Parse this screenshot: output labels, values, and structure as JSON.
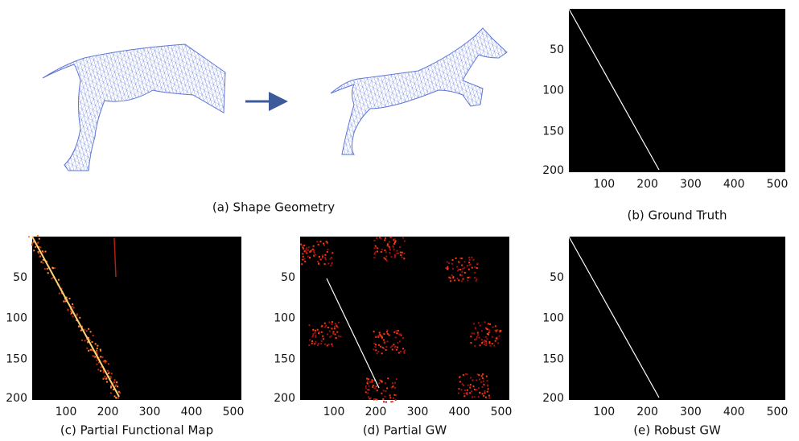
{
  "figure": {
    "panels": [
      {
        "caption": "(a) Shape Geometry"
      },
      {
        "caption": "(b) Ground Truth",
        "xticks": [
          100,
          200,
          300,
          400,
          500
        ],
        "yticks": [
          50,
          100,
          150,
          200
        ]
      },
      {
        "caption": "(c) Partial Functional Map",
        "xticks": [
          100,
          200,
          300,
          400,
          500
        ],
        "yticks": [
          50,
          100,
          150,
          200
        ]
      },
      {
        "caption": "(d) Partial GW",
        "xticks": [
          100,
          200,
          300,
          400,
          500
        ],
        "yticks": [
          50,
          100,
          150,
          200
        ]
      },
      {
        "caption": "(e) Robust GW",
        "xticks": [
          100,
          200,
          300,
          400,
          500
        ],
        "yticks": [
          50,
          100,
          150,
          200
        ]
      }
    ]
  }
}
